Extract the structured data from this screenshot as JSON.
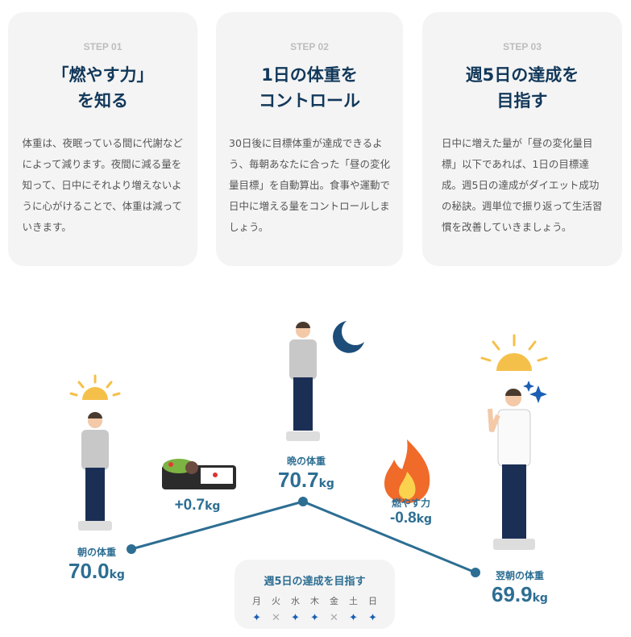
{
  "steps": [
    {
      "label": "STEP 01",
      "title1": "「燃やす力」",
      "title2": "を知る",
      "body": "体重は、夜眠っている間に代謝などによって減ります。夜間に減る量を知って、日中にそれより増えないように心がけることで、体重は減っていきます。"
    },
    {
      "label": "STEP 02",
      "title1": "1日の体重を",
      "title2": "コントロール",
      "body": "30日後に目標体重が達成できるよう、毎朝あなたに合った「昼の変化量目標」を自動算出。食事や運動で日中に増える量をコントロールしましょう。"
    },
    {
      "label": "STEP 03",
      "title1": "週5日の達成を",
      "title2": "目指す",
      "body": "日中に増えた量が「昼の変化量目標」以下であれば、1日の目標達成。週5日の達成がダイエット成功の秘訣。週単位で振り返って生活習慣を改善していきましょう。"
    }
  ],
  "diagram": {
    "morning": {
      "label": "朝の体重",
      "value": "70.0",
      "unit": "kg"
    },
    "gain": {
      "value": "+0.7",
      "unit": "kg"
    },
    "evening": {
      "label": "晩の体重",
      "value": "70.7",
      "unit": "kg"
    },
    "burn": {
      "label": "燃やす力",
      "value": "-0.8",
      "unit": "kg"
    },
    "next": {
      "label": "翌朝の体重",
      "value": "69.9",
      "unit": "kg"
    },
    "week": {
      "title": "週5日の達成を目指す",
      "days": [
        {
          "d": "月",
          "ok": true
        },
        {
          "d": "火",
          "ok": false
        },
        {
          "d": "水",
          "ok": true
        },
        {
          "d": "木",
          "ok": true
        },
        {
          "d": "金",
          "ok": false
        },
        {
          "d": "土",
          "ok": true
        },
        {
          "d": "日",
          "ok": true
        }
      ]
    },
    "colors": {
      "accent": "#2d6e93",
      "navy": "#12385a",
      "star": "#1a5fb4",
      "sun": "#f5c04a"
    }
  }
}
